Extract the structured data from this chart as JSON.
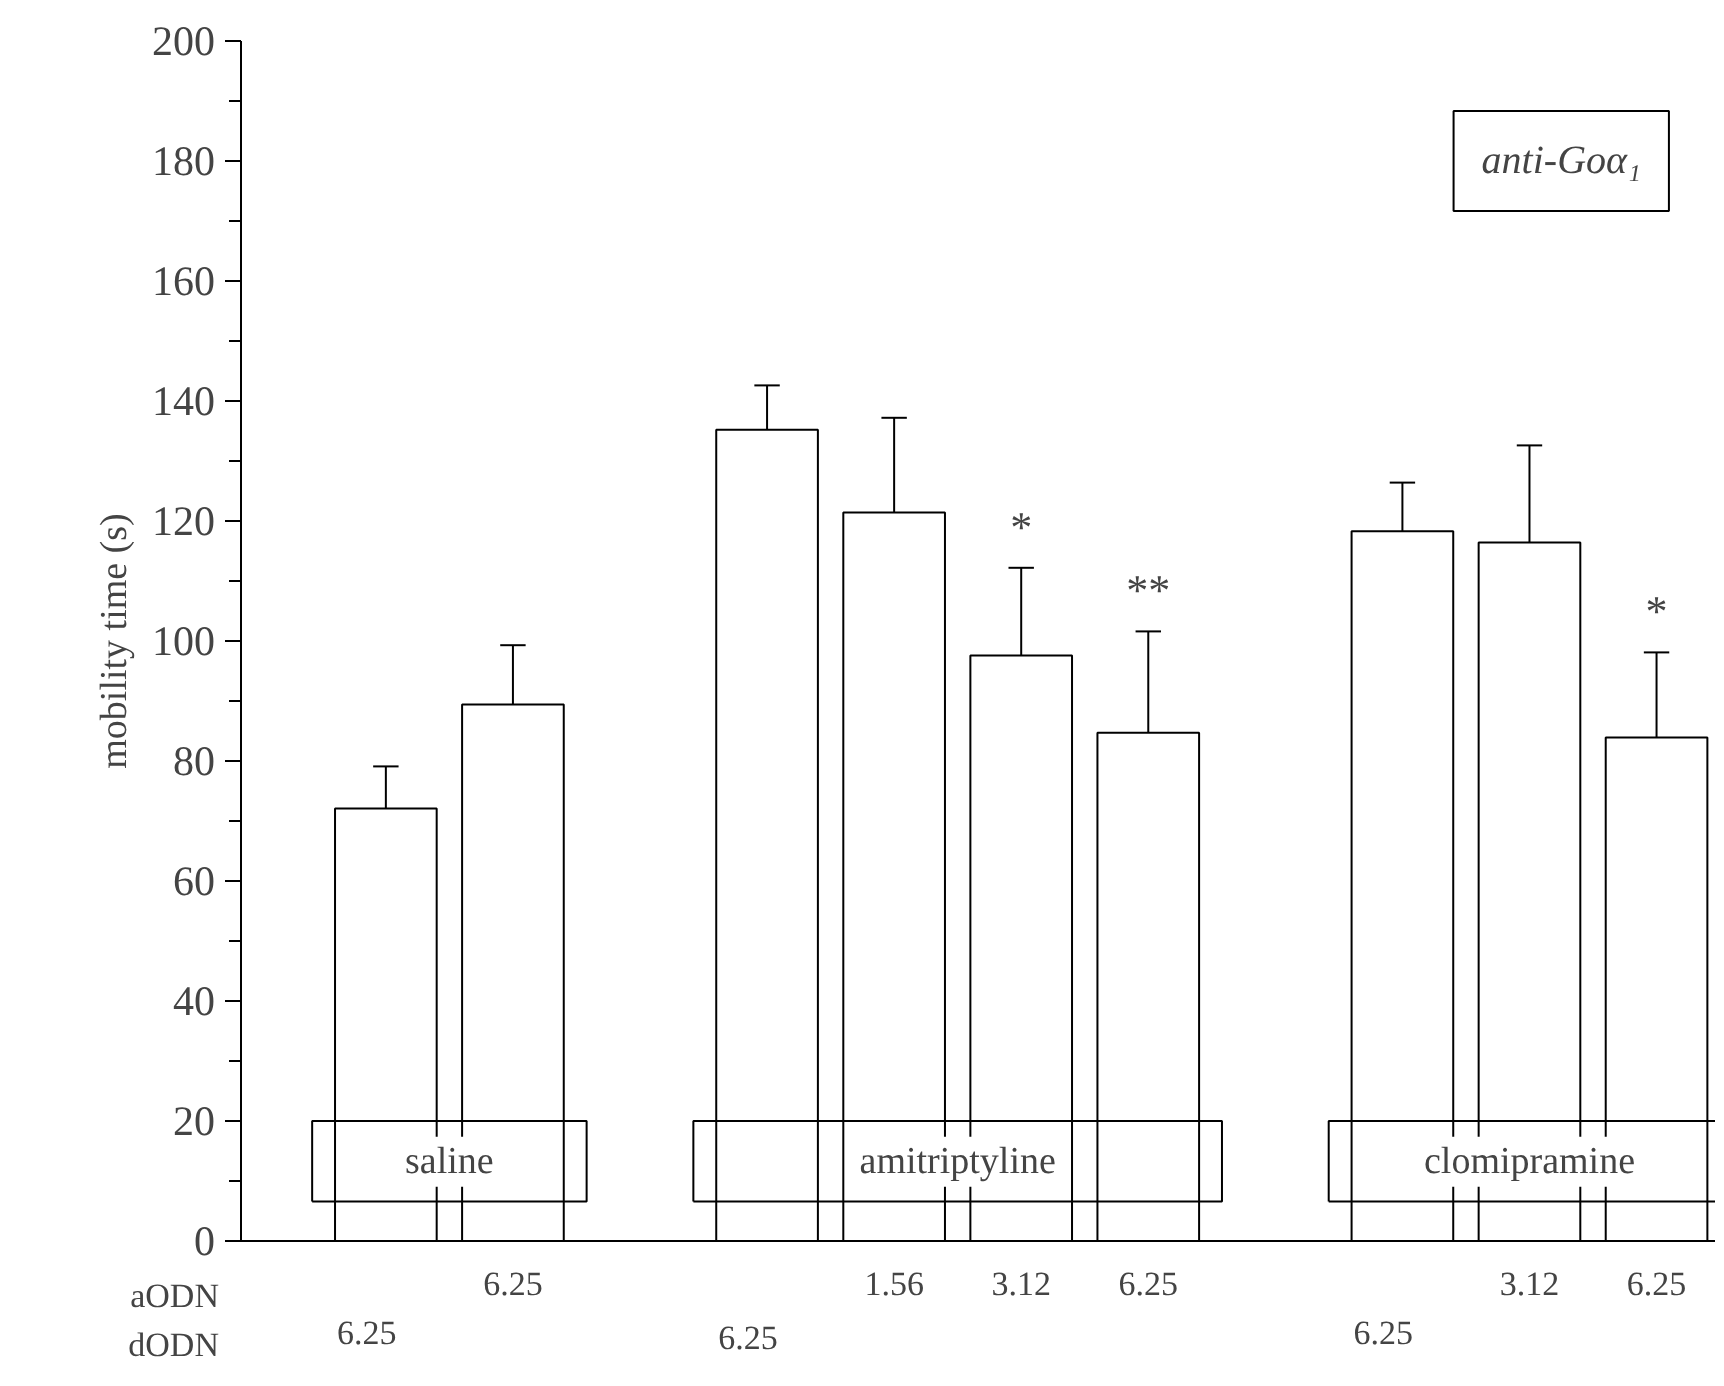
{
  "chart_data": {
    "type": "bar",
    "title": "anti-Goα₁",
    "ylabel": "mobility time (s)",
    "categories": [
      null,
      "6.25",
      null,
      null,
      "1.56",
      "3.12",
      "6.25",
      null,
      null,
      "3.12",
      "6.25"
    ],
    "values": [
      72.1,
      89.4,
      null,
      135.2,
      121.4,
      97.6,
      84.7,
      null,
      118.3,
      116.4,
      83.9
    ],
    "errors": [
      [
        72.1,
        79.1
      ],
      [
        89.4,
        99.3
      ],
      null,
      [
        135.2,
        142.6
      ],
      [
        121.4,
        137.2
      ],
      [
        97.6,
        112.2
      ],
      [
        84.7,
        101.6
      ],
      null,
      [
        118.3,
        126.4
      ],
      [
        116.4,
        132.6
      ],
      [
        83.9,
        98.1
      ]
    ],
    "value_labels": [
      null,
      null,
      null,
      null,
      null,
      "*",
      "**",
      null,
      null,
      null,
      "*"
    ],
    "color": "#ffffff",
    "annotations": [
      "saline",
      "amitriptyline",
      "clomipramine",
      "aODN",
      "dODN",
      "6.25",
      "6.25",
      "6.25"
    ],
    "ylim": [
      0,
      200
    ],
    "yticks": [
      0,
      {
        "value": 10,
        "label": null
      },
      20,
      {
        "value": 30,
        "label": null
      },
      40,
      {
        "value": 50,
        "label": null
      },
      60,
      {
        "value": 70,
        "label": null
      },
      80,
      {
        "value": 90,
        "label": null
      },
      100,
      {
        "value": 110,
        "label": null
      },
      120,
      {
        "value": 130,
        "label": null
      },
      140,
      {
        "value": 150,
        "label": null
      },
      160,
      {
        "value": 170,
        "label": null
      },
      180,
      {
        "value": 190,
        "label": null
      },
      200
    ],
    "grid": false
  }
}
